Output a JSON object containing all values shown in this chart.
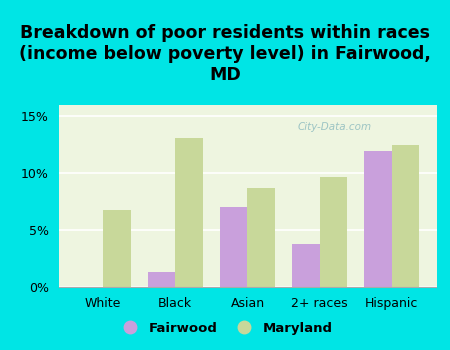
{
  "title": "Breakdown of poor residents within races\n(income below poverty level) in Fairwood,\nMD",
  "categories": [
    "White",
    "Black",
    "Asian",
    "2+ races",
    "Hispanic"
  ],
  "fairwood_values": [
    0.0,
    1.3,
    7.0,
    3.8,
    12.0
  ],
  "maryland_values": [
    6.8,
    13.1,
    8.7,
    9.7,
    12.5
  ],
  "fairwood_color": "#c9a0dc",
  "maryland_color": "#c8d89a",
  "background_outer": "#00e5e5",
  "background_inner": "#eef5e0",
  "ylim": [
    0,
    16
  ],
  "yticks": [
    0,
    5,
    10,
    15
  ],
  "ytick_labels": [
    "0%",
    "5%",
    "10%",
    "15%"
  ],
  "title_fontsize": 12.5,
  "legend_labels": [
    "Fairwood",
    "Maryland"
  ],
  "watermark": "City-Data.com"
}
